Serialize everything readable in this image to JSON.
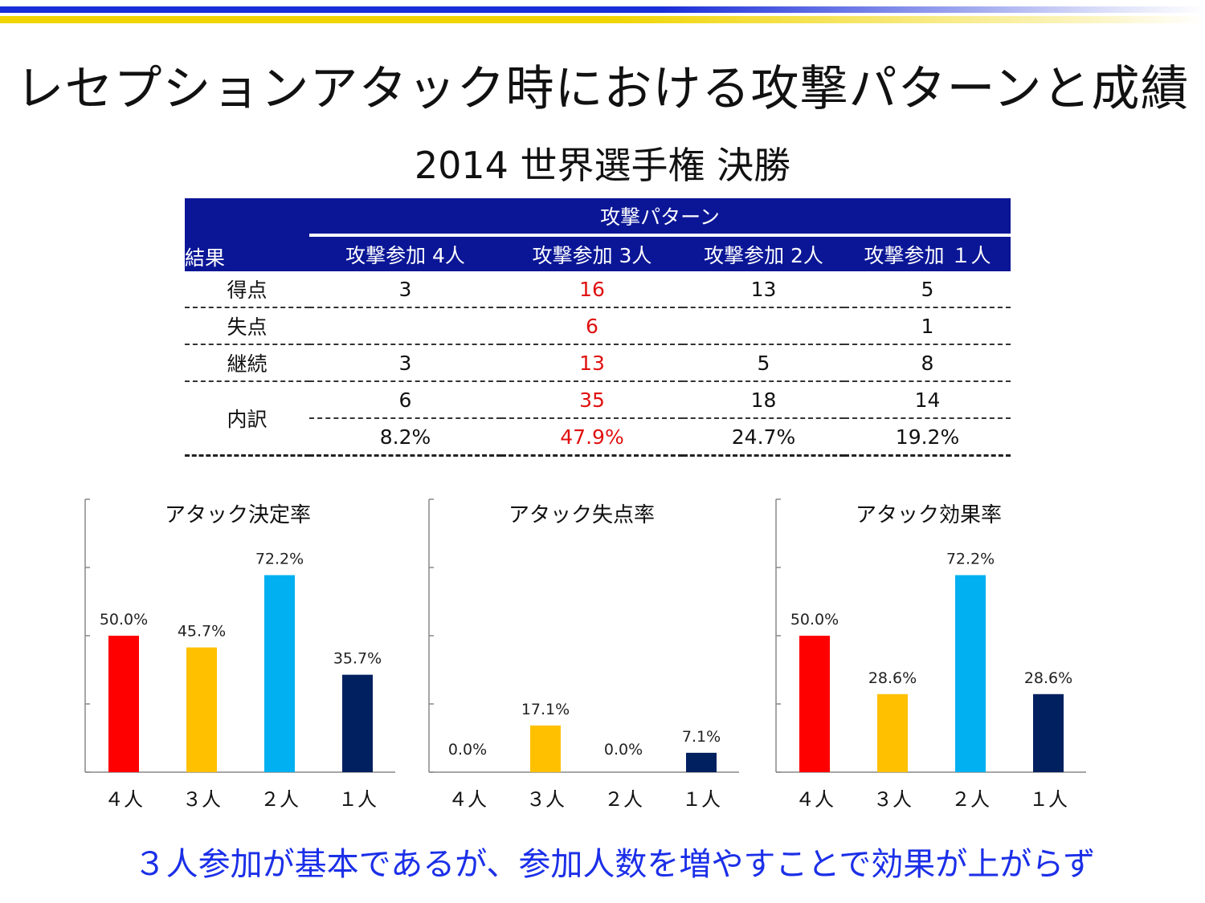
{
  "title": "レセプションアタック時における攻撃パターンと成績",
  "subtitle": "2014 世界選手権 決勝",
  "table": {
    "group_header": "攻撃パターン",
    "row_header": "結果",
    "columns": [
      "攻撃参加 4人",
      "攻撃参加 3人",
      "攻撃参加 2人",
      "攻撃参加 １人"
    ],
    "rows": [
      {
        "label": "得点",
        "values": [
          "3",
          "16",
          "13",
          "5"
        ]
      },
      {
        "label": "失点",
        "values": [
          "",
          "6",
          "",
          "1"
        ]
      },
      {
        "label": "継続",
        "values": [
          "3",
          "13",
          "5",
          "8"
        ]
      },
      {
        "label": "内訳",
        "values": [
          "6",
          "35",
          "18",
          "14"
        ]
      },
      {
        "label": "",
        "values": [
          "8.2%",
          "47.9%",
          "24.7%",
          "19.2%"
        ]
      }
    ],
    "highlight_color": "#e01010"
  },
  "chart_data": [
    {
      "type": "bar",
      "title": "アタック決定率",
      "categories": [
        "４人",
        "３人",
        "２人",
        "１人"
      ],
      "values": [
        50.0,
        45.7,
        72.2,
        35.7
      ],
      "data_labels": [
        "50.0%",
        "45.7%",
        "72.2%",
        "35.7%"
      ],
      "colors": [
        "#ff0000",
        "#ffc000",
        "#00b0f0",
        "#002060"
      ],
      "ylim": [
        0,
        100
      ],
      "grid": false
    },
    {
      "type": "bar",
      "title": "アタック失点率",
      "categories": [
        "４人",
        "３人",
        "２人",
        "１人"
      ],
      "values": [
        0.0,
        17.1,
        0.0,
        7.1
      ],
      "data_labels": [
        "0.0%",
        "17.1%",
        "0.0%",
        "7.1%"
      ],
      "colors": [
        "#ff0000",
        "#ffc000",
        "#00b0f0",
        "#002060"
      ],
      "ylim": [
        0,
        100
      ],
      "grid": false
    },
    {
      "type": "bar",
      "title": "アタック効果率",
      "categories": [
        "４人",
        "３人",
        "２人",
        "１人"
      ],
      "values": [
        50.0,
        28.6,
        72.2,
        28.6
      ],
      "data_labels": [
        "50.0%",
        "28.6%",
        "72.2%",
        "28.6%"
      ],
      "colors": [
        "#ff0000",
        "#ffc000",
        "#00b0f0",
        "#002060"
      ],
      "ylim": [
        0,
        100
      ],
      "grid": false
    }
  ],
  "footer": "３人参加が基本であるが、参加人数を増やすことで効果が上がらず"
}
